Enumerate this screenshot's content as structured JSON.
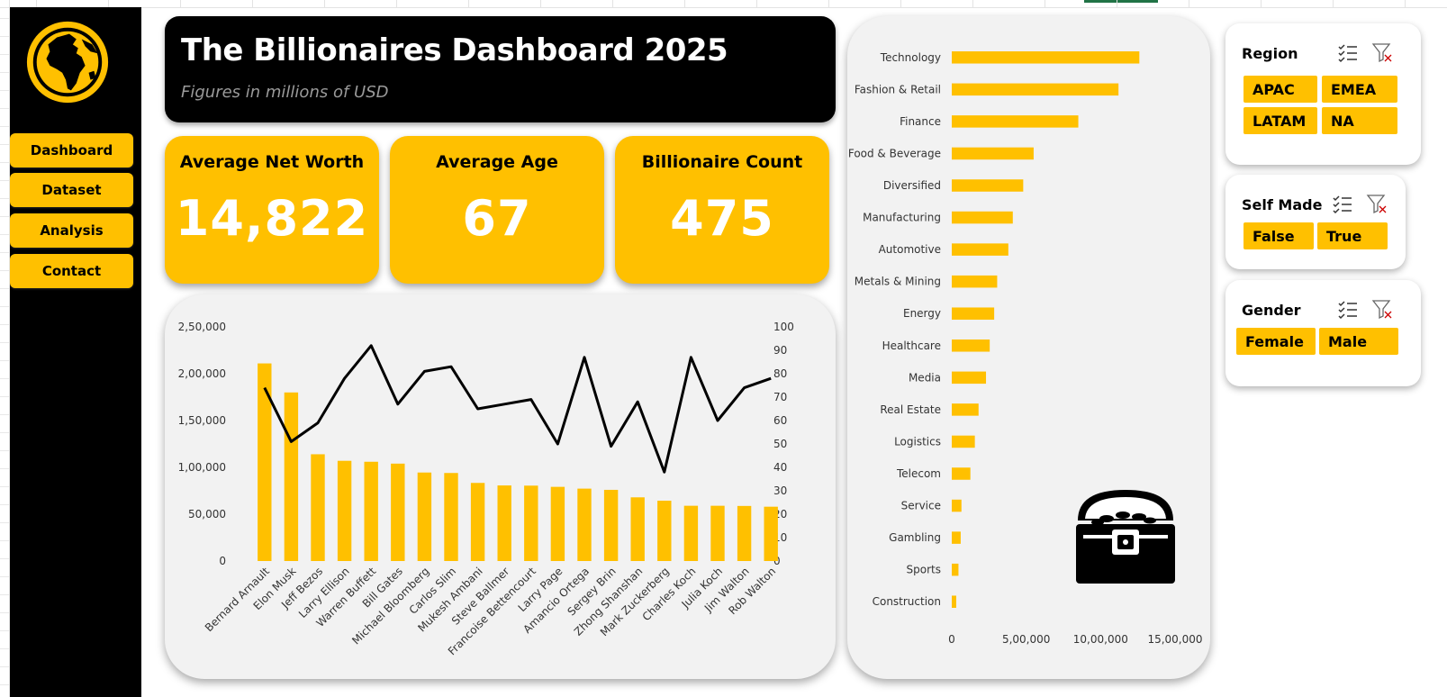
{
  "header": {
    "title": "The Billionaires Dashboard 2025",
    "subtitle": "Figures in millions of USD"
  },
  "nav": [
    {
      "label": "Dashboard"
    },
    {
      "label": "Dataset"
    },
    {
      "label": "Analysis"
    },
    {
      "label": "Contact"
    }
  ],
  "kpis": {
    "net_worth": {
      "label": "Average Net Worth",
      "value": "14,822"
    },
    "age": {
      "label": "Average Age",
      "value": "67"
    },
    "count": {
      "label": "Billionaire Count",
      "value": "475"
    }
  },
  "slicers": {
    "region": {
      "title": "Region",
      "items": [
        "APAC",
        "EMEA",
        "LATAM",
        "NA"
      ]
    },
    "self_made": {
      "title": "Self Made",
      "items": [
        "False",
        "True"
      ]
    },
    "gender": {
      "title": "Gender",
      "items": [
        "Female",
        "Male"
      ]
    }
  },
  "colors": {
    "accent": "#FFC000",
    "dark": "#000000",
    "panel": "#F2F2F2"
  },
  "icons": {
    "logo": "globe-icon",
    "decor": "treasure-chest-icon",
    "multi_select": "multi-select-icon",
    "clear_filter": "clear-filter-icon"
  },
  "chart_data": [
    {
      "type": "bar+line",
      "title": "",
      "categories": [
        "Bernard Arnault",
        "Elon Musk",
        "Jeff Bezos",
        "Larry Ellison",
        "Warren Buffett",
        "Bill Gates",
        "Michael Bloomberg",
        "Carlos Slim",
        "Mukesh Ambani",
        "Steve Ballmer",
        "Francoise Bettencourt",
        "Larry Page",
        "Amancio Ortega",
        "Sergey Brin",
        "Zhong Shanshan",
        "Mark Zuckerberg",
        "Charles Koch",
        "Julia Koch",
        "Jim Walton",
        "Rob Walton"
      ],
      "series": [
        {
          "type": "bar",
          "axis": "left",
          "values": [
            211000,
            180000,
            114000,
            107000,
            106000,
            104000,
            94500,
            94000,
            83400,
            80700,
            80500,
            79200,
            77300,
            76000,
            68000,
            64400,
            59000,
            59000,
            58800,
            58000
          ]
        },
        {
          "type": "line",
          "axis": "right",
          "values": [
            74,
            51,
            59,
            78,
            92,
            67,
            81,
            83,
            65,
            67,
            69,
            50,
            87,
            49,
            68,
            38,
            87,
            60,
            74,
            78
          ]
        }
      ],
      "y_left": {
        "min": 0,
        "max": 250000,
        "ticks": [
          "0",
          "50,000",
          "1,00,000",
          "1,50,000",
          "2,00,000",
          "2,50,000"
        ]
      },
      "y_right": {
        "min": 0,
        "max": 100,
        "ticks": [
          "0",
          "10",
          "20",
          "30",
          "40",
          "50",
          "60",
          "70",
          "80",
          "90",
          "100"
        ]
      },
      "grid": false,
      "legend": "none"
    },
    {
      "type": "bar",
      "orientation": "horizontal",
      "title": "",
      "categories": [
        "Technology",
        "Fashion & Retail",
        "Finance",
        "Food & Beverage",
        "Diversified",
        "Manufacturing",
        "Automotive",
        "Metals & Mining",
        "Energy",
        "Healthcare",
        "Media",
        "Real Estate",
        "Logistics",
        "Telecom",
        "Service",
        "Gambling",
        "Sports",
        "Construction"
      ],
      "values": [
        1260000,
        1120000,
        850000,
        550000,
        480000,
        410000,
        380000,
        305000,
        285000,
        255000,
        230000,
        180000,
        155000,
        125000,
        65000,
        60000,
        45000,
        30000
      ],
      "x_axis": {
        "min": 0,
        "max": 1500000,
        "ticks": [
          "0",
          "5,00,000",
          "10,00,000",
          "15,00,000"
        ]
      },
      "grid": false,
      "legend": "none"
    }
  ]
}
